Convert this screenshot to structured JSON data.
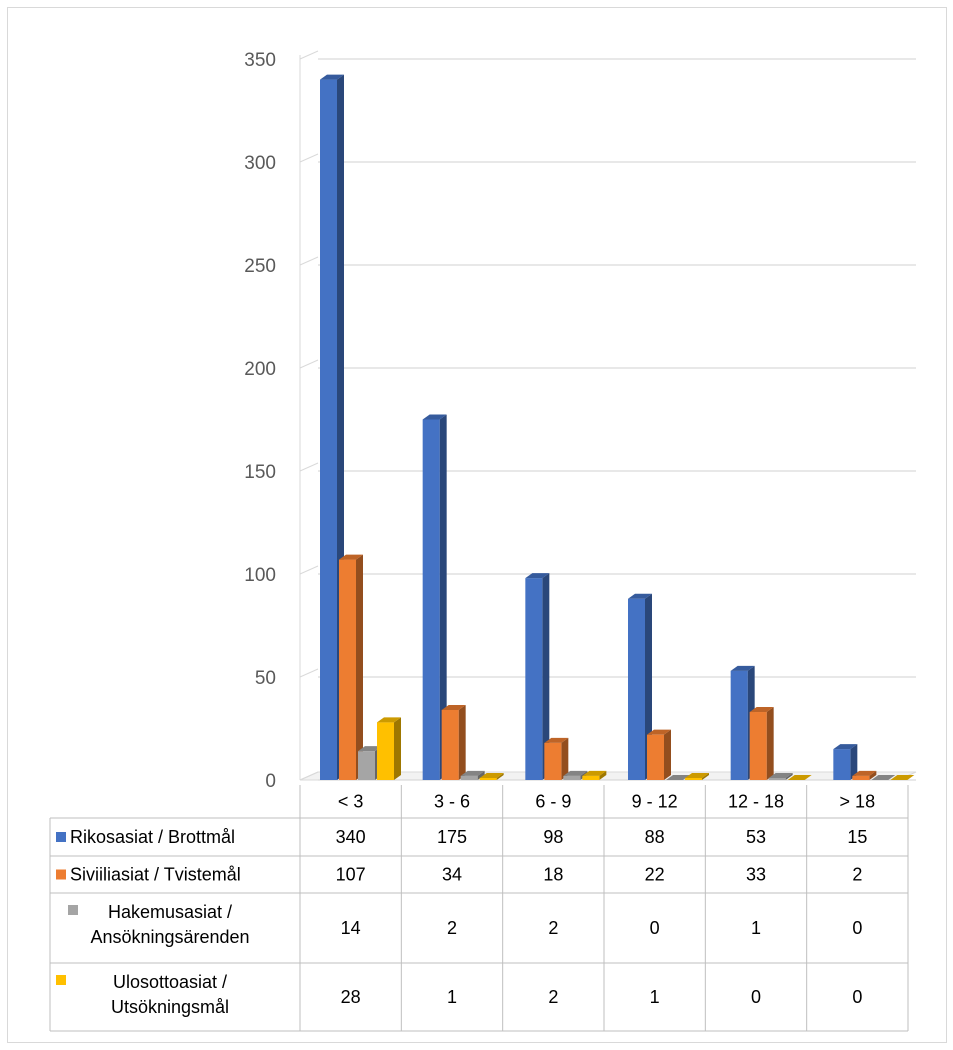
{
  "chart_data": {
    "type": "bar",
    "categories": [
      "< 3",
      "3 - 6",
      "6 - 9",
      "9 - 12",
      "12 - 18",
      "> 18"
    ],
    "series": [
      {
        "name": "Rikosasiat / Brottmål",
        "label_lines": [
          "Rikosasiat / Brottmål"
        ],
        "color": "#4472C4",
        "values": [
          340,
          175,
          98,
          88,
          53,
          15
        ]
      },
      {
        "name": "Siviiliasiat / Tvistemål",
        "label_lines": [
          "Siviiliasiat / Tvistemål"
        ],
        "color": "#ED7D31",
        "values": [
          107,
          34,
          18,
          22,
          33,
          2
        ]
      },
      {
        "name": "Hakemusasiat / Ansökningsärenden",
        "label_lines": [
          "Hakemusasiat /",
          "Ansökningsärenden"
        ],
        "color": "#A5A5A5",
        "values": [
          14,
          2,
          2,
          0,
          1,
          0
        ]
      },
      {
        "name": "Ulosottoasiat / Utsökningsmål",
        "label_lines": [
          "Ulosottoasiat /",
          "Utsökningsmål"
        ],
        "color": "#FFC000",
        "values": [
          28,
          1,
          2,
          1,
          0,
          0
        ]
      }
    ],
    "ylim": [
      0,
      350
    ],
    "yticks": [
      0,
      50,
      100,
      150,
      200,
      250,
      300,
      350
    ],
    "grid": true,
    "legend": "data-table",
    "data_table": true
  }
}
